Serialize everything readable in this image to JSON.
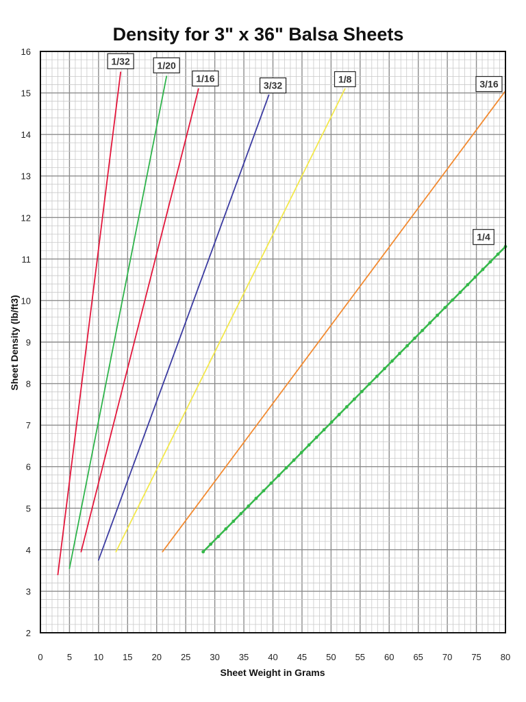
{
  "chart_data": {
    "type": "line",
    "title": "Density for 3\" x 36\" Balsa Sheets",
    "xlabel": "Sheet Weight in Grams",
    "ylabel": "Sheet Density (lb/ft3)",
    "xlim": [
      0,
      80
    ],
    "ylim": [
      2,
      16
    ],
    "xticks": [
      0,
      5,
      10,
      15,
      20,
      25,
      30,
      35,
      40,
      45,
      50,
      55,
      60,
      65,
      70,
      75,
      80
    ],
    "yticks": [
      2,
      3,
      4,
      5,
      6,
      7,
      8,
      9,
      10,
      11,
      12,
      13,
      14,
      15,
      16
    ],
    "grid": true,
    "legend": "labels at line ends",
    "series": [
      {
        "name": "1/32",
        "color": "#e3163b",
        "x": [
          3,
          13.8
        ],
        "y": [
          3.4,
          15.5
        ]
      },
      {
        "name": "1/20",
        "color": "#2db34a",
        "x": [
          5,
          21.7
        ],
        "y": [
          3.55,
          15.4
        ]
      },
      {
        "name": "1/16",
        "color": "#e3163b",
        "x": [
          7,
          27.2
        ],
        "y": [
          3.95,
          15.1
        ]
      },
      {
        "name": "3/32",
        "color": "#3a3aa0",
        "x": [
          10,
          39.3
        ],
        "y": [
          3.75,
          14.95
        ]
      },
      {
        "name": "1/8",
        "color": "#f3e84a",
        "x": [
          13,
          52.4
        ],
        "y": [
          3.95,
          15.1
        ]
      },
      {
        "name": "3/16",
        "color": "#f28a30",
        "x": [
          21,
          80
        ],
        "y": [
          3.95,
          15.05
        ]
      },
      {
        "name": "1/4",
        "color": "#35b84a",
        "markers": true,
        "x": [
          28,
          80
        ],
        "y": [
          3.95,
          11.3
        ]
      }
    ]
  }
}
